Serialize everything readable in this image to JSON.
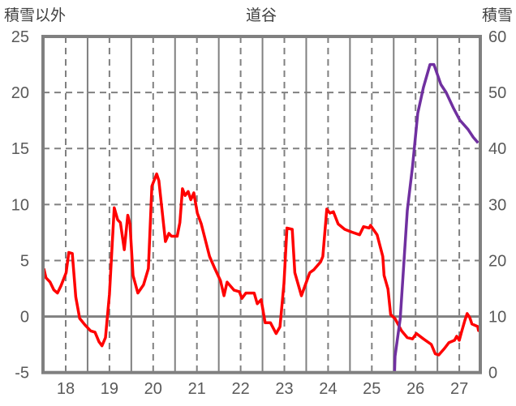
{
  "chart_data": {
    "type": "line",
    "title": "道谷",
    "left_axis_label": "積雪以外",
    "right_axis_label": "積雪",
    "xlim": [
      17.47,
      27.48
    ],
    "x_ticks": [
      18,
      19,
      20,
      21,
      22,
      23,
      24,
      25,
      26,
      27
    ],
    "y_left": {
      "range": [
        -5,
        25
      ],
      "ticks": [
        25,
        20,
        15,
        10,
        5,
        0,
        -5
      ]
    },
    "y_right": {
      "range": [
        0,
        60
      ],
      "ticks": [
        60,
        50,
        40,
        30,
        20,
        10,
        0
      ]
    },
    "grid": true,
    "series": [
      {
        "name": "積雪以外",
        "axis": "left",
        "color": "#ff0000",
        "points": [
          [
            17.5,
            4.28
          ],
          [
            17.55,
            3.46
          ],
          [
            17.64,
            3.09
          ],
          [
            17.73,
            2.37
          ],
          [
            17.81,
            2.1
          ],
          [
            17.89,
            2.73
          ],
          [
            18.01,
            3.91
          ],
          [
            18.07,
            5.72
          ],
          [
            18.15,
            5.63
          ],
          [
            18.23,
            1.74
          ],
          [
            18.32,
            -0.17
          ],
          [
            18.45,
            -0.8
          ],
          [
            18.57,
            -1.28
          ],
          [
            18.67,
            -1.4
          ],
          [
            18.76,
            -2.25
          ],
          [
            18.83,
            -2.61
          ],
          [
            18.91,
            -1.88
          ],
          [
            19.0,
            1.99
          ],
          [
            19.11,
            9.71
          ],
          [
            19.19,
            8.62
          ],
          [
            19.25,
            8.38
          ],
          [
            19.34,
            5.97
          ],
          [
            19.42,
            9.04
          ],
          [
            19.47,
            8.26
          ],
          [
            19.54,
            3.67
          ],
          [
            19.65,
            2.1
          ],
          [
            19.78,
            2.83
          ],
          [
            19.89,
            4.28
          ],
          [
            19.97,
            11.64
          ],
          [
            20.08,
            12.73
          ],
          [
            20.13,
            12.13
          ],
          [
            20.28,
            6.7
          ],
          [
            20.36,
            7.42
          ],
          [
            20.42,
            7.17
          ],
          [
            20.55,
            7.17
          ],
          [
            20.61,
            8.38
          ],
          [
            20.67,
            11.41
          ],
          [
            20.73,
            10.8
          ],
          [
            20.8,
            11.16
          ],
          [
            20.86,
            10.43
          ],
          [
            20.93,
            11.04
          ],
          [
            21.01,
            9.23
          ],
          [
            21.1,
            8.26
          ],
          [
            21.29,
            5.36
          ],
          [
            21.41,
            4.28
          ],
          [
            21.54,
            3.19
          ],
          [
            21.62,
            1.86
          ],
          [
            21.69,
            3.07
          ],
          [
            21.85,
            2.35
          ],
          [
            21.97,
            2.22
          ],
          [
            22.03,
            1.62
          ],
          [
            22.12,
            2.1
          ],
          [
            22.31,
            2.1
          ],
          [
            22.38,
            1.14
          ],
          [
            22.47,
            1.5
          ],
          [
            22.56,
            -0.55
          ],
          [
            22.68,
            -0.55
          ],
          [
            22.81,
            -1.52
          ],
          [
            22.9,
            -0.91
          ],
          [
            22.99,
            2.95
          ],
          [
            23.06,
            7.9
          ],
          [
            23.18,
            7.78
          ],
          [
            23.24,
            3.91
          ],
          [
            23.39,
            1.86
          ],
          [
            23.58,
            3.91
          ],
          [
            23.67,
            4.16
          ],
          [
            23.83,
            4.88
          ],
          [
            23.88,
            5.36
          ],
          [
            23.97,
            9.59
          ],
          [
            24.04,
            9.23
          ],
          [
            24.12,
            9.35
          ],
          [
            24.23,
            8.26
          ],
          [
            24.38,
            7.78
          ],
          [
            24.54,
            7.54
          ],
          [
            24.72,
            7.3
          ],
          [
            24.81,
            8.02
          ],
          [
            24.94,
            7.9
          ],
          [
            24.97,
            8.14
          ],
          [
            25.12,
            7.3
          ],
          [
            25.25,
            5.36
          ],
          [
            25.28,
            3.67
          ],
          [
            25.37,
            2.46
          ],
          [
            25.43,
            0.17
          ],
          [
            25.53,
            -0.19
          ],
          [
            25.68,
            -1.28
          ],
          [
            25.81,
            -1.88
          ],
          [
            25.93,
            -2.0
          ],
          [
            26.02,
            -1.52
          ],
          [
            26.18,
            -2.0
          ],
          [
            26.36,
            -2.49
          ],
          [
            26.45,
            -3.33
          ],
          [
            26.53,
            -3.43
          ],
          [
            26.66,
            -2.85
          ],
          [
            26.76,
            -2.34
          ],
          [
            26.89,
            -2.12
          ],
          [
            26.94,
            -1.76
          ],
          [
            27.0,
            -2.12
          ],
          [
            27.05,
            -1.4
          ],
          [
            27.13,
            -0.31
          ],
          [
            27.18,
            0.27
          ],
          [
            27.24,
            -0.09
          ],
          [
            27.29,
            -0.67
          ],
          [
            27.42,
            -0.89
          ],
          [
            27.44,
            -1.25
          ],
          [
            27.48,
            -0.82
          ]
        ]
      },
      {
        "name": "積雪",
        "axis": "right",
        "color": "#7030a0",
        "points": [
          [
            17.47,
            0
          ],
          [
            25.52,
            0
          ],
          [
            25.53,
            2.9
          ],
          [
            25.65,
            9.6
          ],
          [
            25.81,
            28.9
          ],
          [
            25.93,
            36.7
          ],
          [
            26.05,
            46.3
          ],
          [
            26.18,
            50.9
          ],
          [
            26.33,
            55.0
          ],
          [
            26.42,
            55.0
          ],
          [
            26.58,
            51.4
          ],
          [
            26.7,
            50.0
          ],
          [
            26.86,
            47.3
          ],
          [
            27.01,
            45.1
          ],
          [
            27.2,
            43.4
          ],
          [
            27.32,
            42.0
          ],
          [
            27.43,
            41.0
          ]
        ]
      }
    ]
  }
}
